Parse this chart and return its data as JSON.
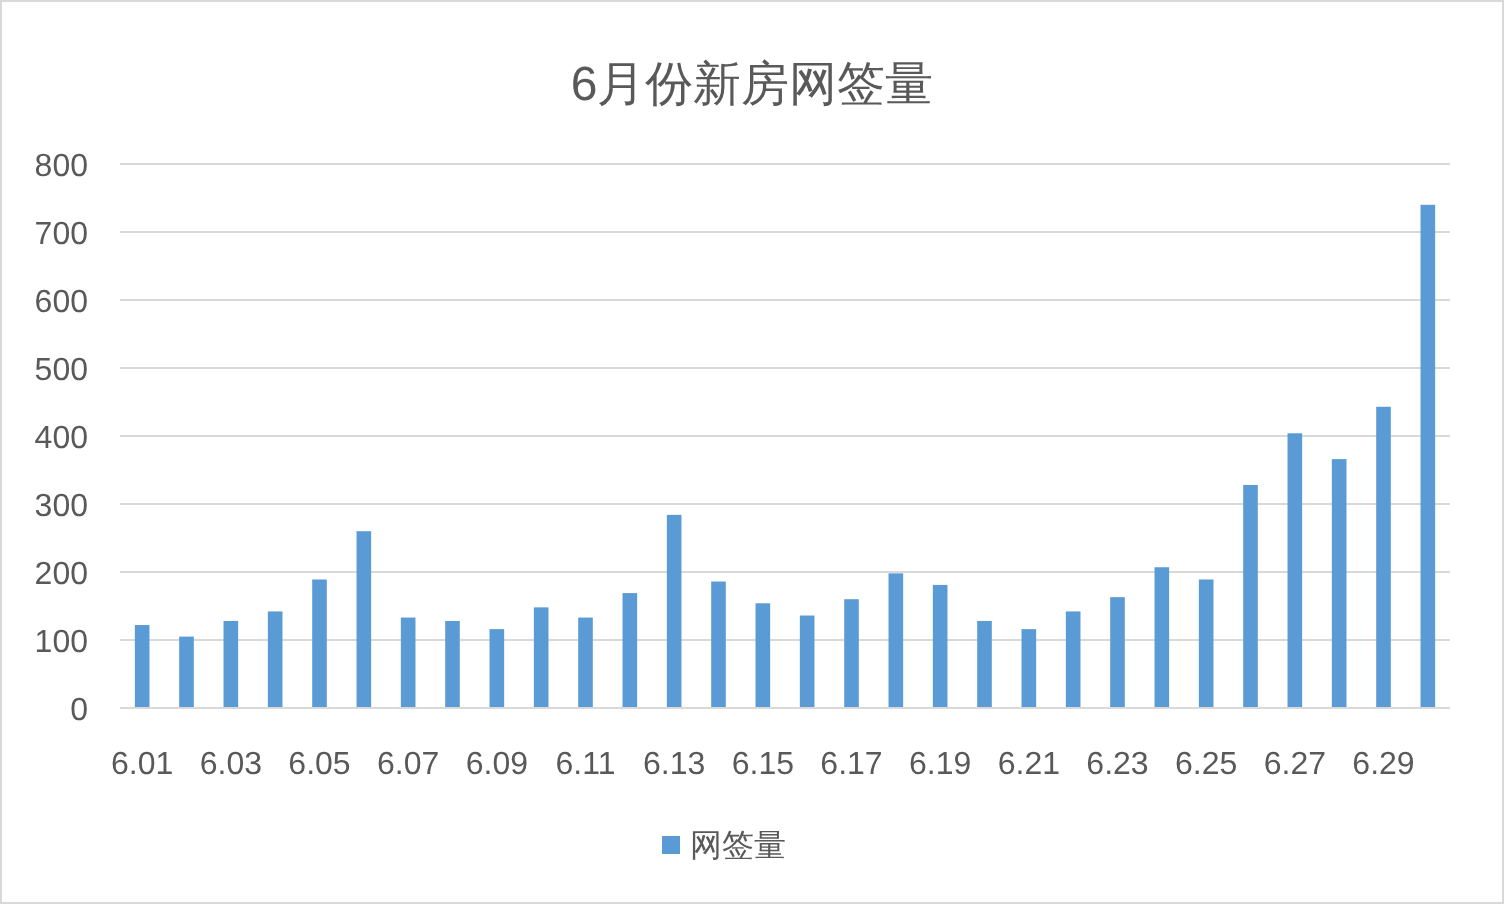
{
  "chart_data": {
    "type": "bar",
    "title": "6月份新房网签量",
    "categories": [
      "6.01",
      null,
      "6.03",
      null,
      "6.05",
      null,
      "6.07",
      null,
      "6.09",
      null,
      "6.11",
      null,
      "6.13",
      null,
      "6.15",
      null,
      "6.17",
      null,
      "6.19",
      null,
      "6.21",
      null,
      "6.23",
      null,
      "6.25",
      null,
      "6.27",
      null,
      "6.29",
      null
    ],
    "series": [
      {
        "name": "网签量",
        "color": "#5b9bd5",
        "values": [
          122,
          105,
          128,
          142,
          189,
          260,
          133,
          128,
          116,
          148,
          133,
          169,
          284,
          186,
          154,
          136,
          160,
          198,
          181,
          128,
          116,
          142,
          163,
          207,
          189,
          328,
          404,
          366,
          443,
          740
        ]
      }
    ],
    "ylim": [
      0,
      800
    ],
    "yticks": [
      0,
      100,
      200,
      300,
      400,
      500,
      600,
      700,
      800
    ],
    "grid": "y",
    "legend": "bottom"
  }
}
